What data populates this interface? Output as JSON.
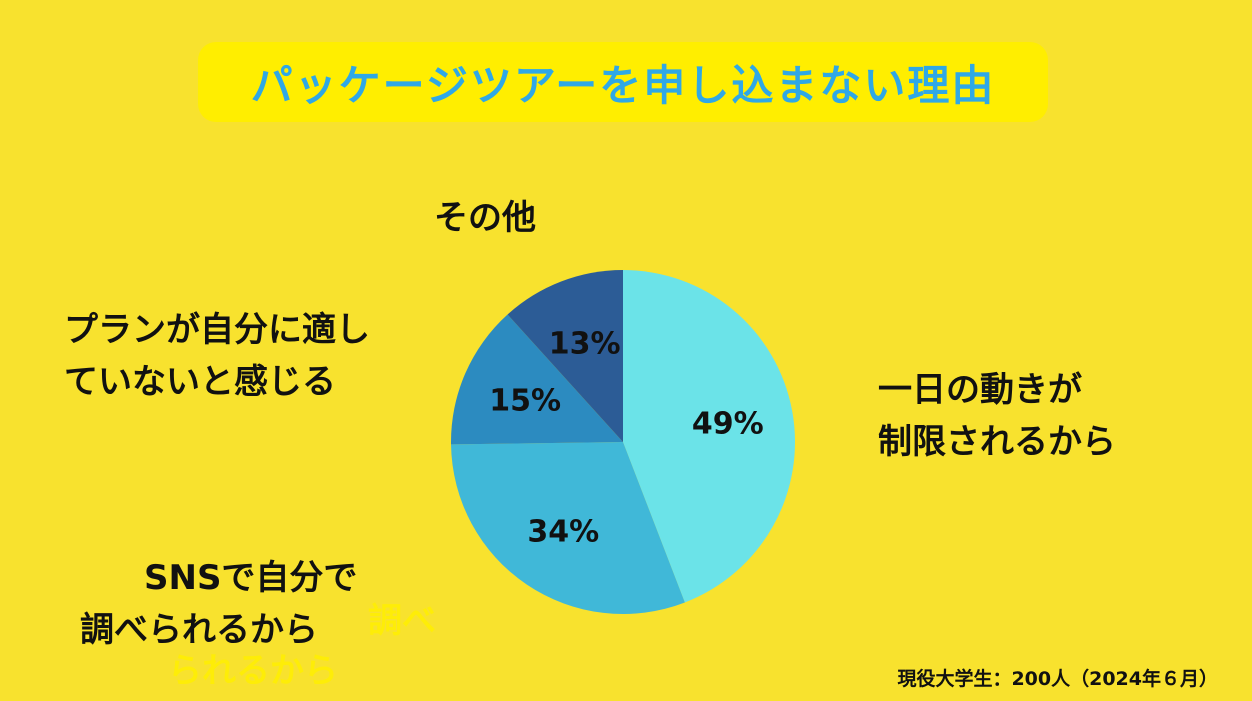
{
  "title": "パッケージツアーを申し込まない理由",
  "source": "現役大学生：200人（2024年６月）",
  "chart_data": {
    "type": "pie",
    "title": "パッケージツアーを申し込まない理由",
    "slices": [
      {
        "label_lines": [
          "一日の動きが",
          "制限されるから"
        ],
        "value": 49,
        "value_label": "49%",
        "color": "#6BE3E8"
      },
      {
        "label_lines": [
          "SNSで自分で",
          "調べられるから"
        ],
        "value": 34,
        "value_label": "34%",
        "color": "#40B8D8"
      },
      {
        "label_lines": [
          "プランが自分に適し",
          "ていないと感じる"
        ],
        "value": 15,
        "value_label": "15%",
        "color": "#2C8BC0"
      },
      {
        "label_lines": [
          "その他"
        ],
        "value": 13,
        "value_label": "13%",
        "color": "#2C5C96"
      }
    ],
    "start_angle_deg": 0,
    "direction": "clockwise",
    "legend": "none",
    "ghost_text_lines": [
      "調べ",
      "られるから"
    ]
  }
}
